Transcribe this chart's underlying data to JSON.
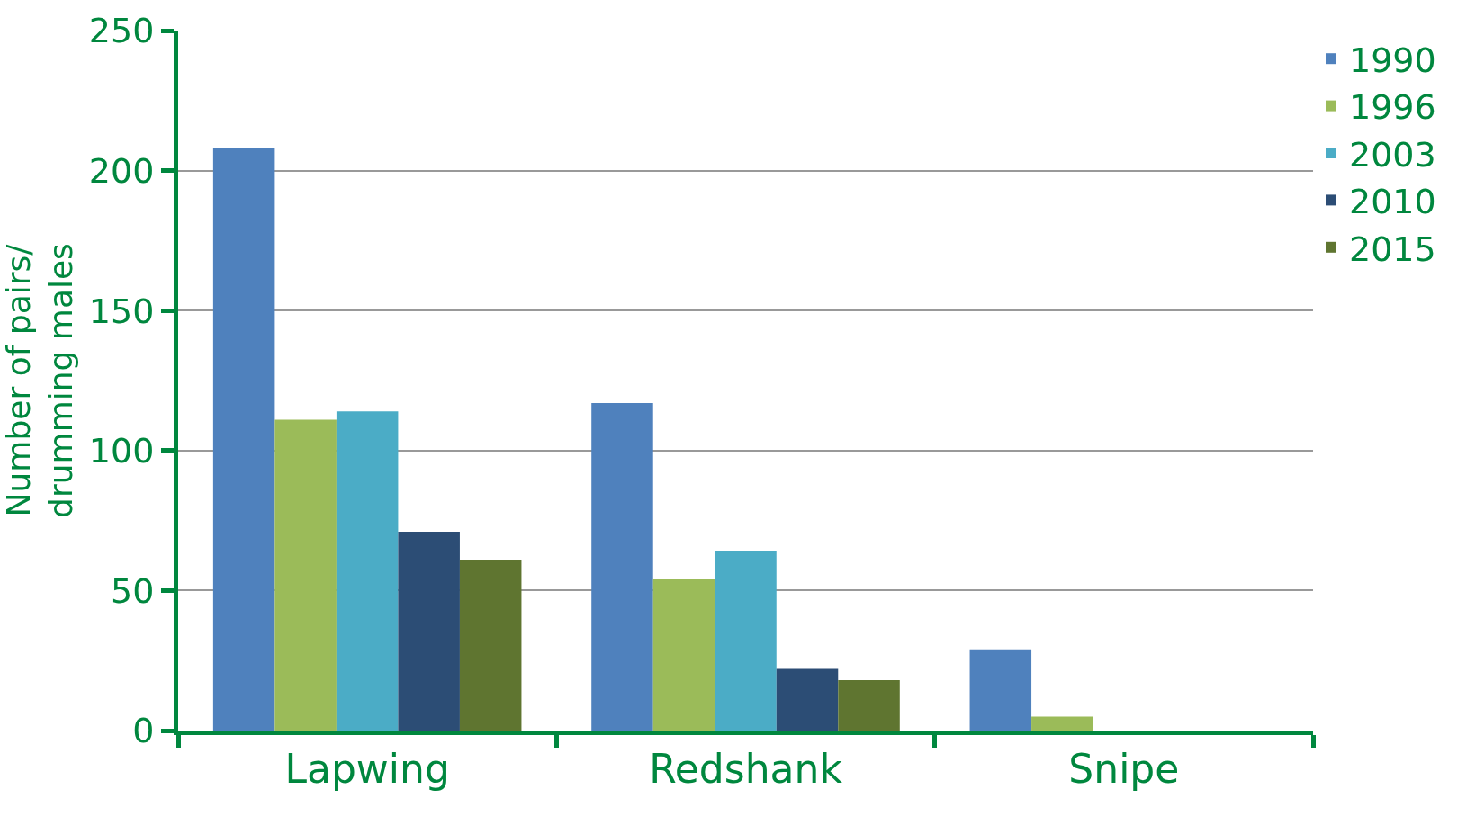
{
  "chart_data": {
    "type": "bar",
    "ylabel": "Number of pairs/\ndrumming males",
    "categories": [
      "Lapwing",
      "Redshank",
      "Snipe"
    ],
    "series": [
      {
        "name": "1990",
        "color": "#4f81bd",
        "values": [
          208,
          117,
          29
        ]
      },
      {
        "name": "1996",
        "color": "#9bbb59",
        "values": [
          111,
          54,
          5
        ]
      },
      {
        "name": "2003",
        "color": "#4bacc6",
        "values": [
          114,
          64,
          0
        ]
      },
      {
        "name": "2010",
        "color": "#2c4d75",
        "values": [
          71,
          22,
          0
        ]
      },
      {
        "name": "2015",
        "color": "#5f7530",
        "values": [
          61,
          18,
          0
        ]
      }
    ],
    "ylim": [
      0,
      250
    ],
    "yticks": [
      0,
      50,
      100,
      150,
      200,
      250
    ],
    "grid": "y",
    "legend": "right"
  }
}
